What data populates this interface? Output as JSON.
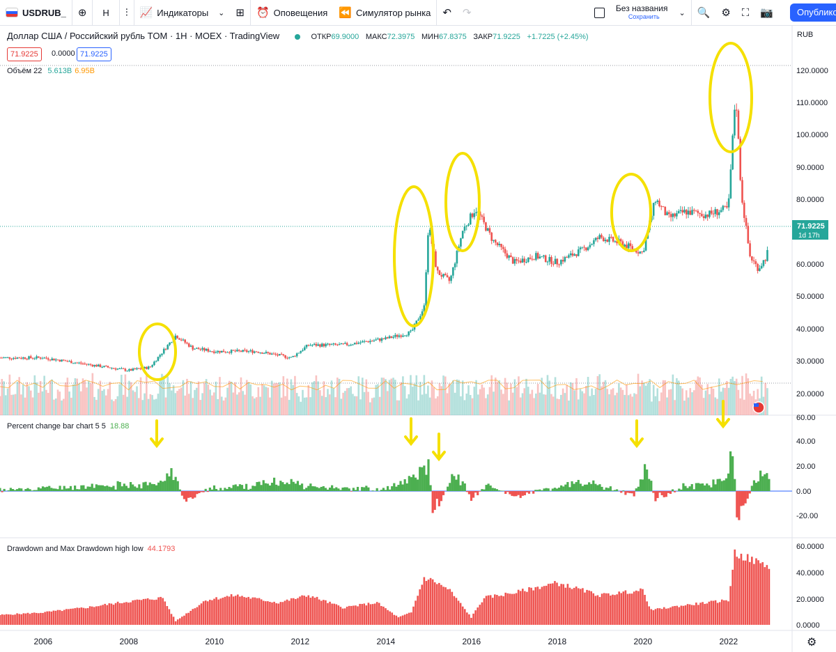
{
  "toolbar": {
    "symbol": "USDRUB_",
    "interval": "H",
    "indicators": "Индикаторы",
    "alerts": "Оповещения",
    "replay": "Симулятор рынка",
    "layout_name": "Без названия",
    "layout_status": "Сохранить",
    "publish": "Опубликов"
  },
  "header": {
    "title": "Доллар США / Российский рубль TOM · 1H · MOEX · TradingView",
    "open_label": "ОТКР",
    "open": "69.9000",
    "high_label": "МАКС",
    "high": "72.3975",
    "low_label": "МИН",
    "low": "67.8375",
    "close_label": "ЗАКР",
    "close": "71.9225",
    "change": "+1.7225 (+2.45%)",
    "bid": "71.9225",
    "spread": "0.0000",
    "ask": "71.9225",
    "currency": "RUB"
  },
  "volume_legend": {
    "label": "Объём 22",
    "value": "5.613B",
    "ma": "6.95B"
  },
  "indicator1": {
    "label": "Percent change bar chart 5 5",
    "value": "18.88"
  },
  "indicator2": {
    "label": "Drawdown and Max Drawdown high low",
    "value": "44.1793"
  },
  "price_label": {
    "price": "71.9225",
    "countdown": "1d 17h"
  },
  "colors": {
    "up": "#26a69a",
    "down": "#ef5350",
    "green": "#4caf50",
    "highlight": "#f5e000",
    "accent": "#2962ff"
  },
  "chart_data": [
    {
      "type": "line",
      "name": "USD/RUB price",
      "x": [
        2005.0,
        2006.0,
        2007.0,
        2008.0,
        2008.5,
        2009.1,
        2009.5,
        2010.0,
        2011.0,
        2011.8,
        2012.2,
        2013.0,
        2014.0,
        2014.6,
        2014.9,
        2015.0,
        2015.2,
        2015.5,
        2015.8,
        2016.1,
        2016.5,
        2017.0,
        2017.5,
        2018.0,
        2018.6,
        2019.0,
        2019.5,
        2020.0,
        2020.3,
        2020.6,
        2021.0,
        2021.5,
        2022.0,
        2022.17,
        2022.3,
        2022.5,
        2022.7,
        2022.9,
        2023.0
      ],
      "values": [
        28,
        28,
        26,
        24,
        25,
        35,
        31,
        30,
        30,
        28,
        32,
        32,
        34,
        36,
        44,
        70,
        55,
        52,
        68,
        75,
        65,
        58,
        60,
        58,
        62,
        66,
        64,
        61,
        78,
        72,
        74,
        73,
        75,
        112,
        80,
        60,
        56,
        60,
        72
      ],
      "ylim": [
        14,
        125
      ],
      "yticks": [
        "120.0000",
        "110.0000",
        "100.0000",
        "90.0000",
        "80.0000",
        "70.0000",
        "60.0000",
        "50.0000",
        "40.0000",
        "30.0000",
        "20.0000"
      ],
      "xticks": [
        "2006",
        "2008",
        "2010",
        "2012",
        "2014",
        "2016",
        "2018",
        "2020",
        "2022"
      ]
    },
    {
      "type": "bar",
      "name": "Percent change bar chart 5 5",
      "x": [
        2005.0,
        2008.8,
        2009.0,
        2009.3,
        2010.0,
        2011.8,
        2012.5,
        2014.0,
        2014.7,
        2014.9,
        2015.0,
        2015.1,
        2015.3,
        2015.6,
        2015.8,
        2016.0,
        2016.4,
        2017.0,
        2018.5,
        2019.0,
        2019.8,
        2020.1,
        2020.3,
        2021.0,
        2021.9,
        2022.1,
        2022.2,
        2022.3,
        2022.6,
        2022.9
      ],
      "values": [
        1,
        8,
        26,
        -8,
        3,
        10,
        4,
        2,
        14,
        22,
        26,
        -15,
        -10,
        18,
        12,
        -10,
        8,
        -6,
        9,
        6,
        -4,
        25,
        -8,
        6,
        10,
        50,
        -28,
        -20,
        10,
        19
      ],
      "ylim": [
        -30,
        60
      ],
      "yticks": [
        "60.00",
        "40.00",
        "20.00",
        "0.00",
        "-20.00"
      ]
    },
    {
      "type": "area",
      "name": "Drawdown and Max Drawdown high low",
      "x": [
        2005.0,
        2006.0,
        2007.0,
        2008.0,
        2008.8,
        2009.1,
        2009.8,
        2010.5,
        2011.5,
        2012.2,
        2013.0,
        2013.8,
        2014.3,
        2014.6,
        2014.9,
        2015.1,
        2015.5,
        2016.0,
        2016.3,
        2017.0,
        2018.0,
        2019.0,
        2020.0,
        2020.2,
        2021.0,
        2022.0,
        2022.15,
        2022.3,
        2022.9
      ],
      "values": [
        8,
        10,
        14,
        19,
        22,
        3,
        20,
        24,
        18,
        24,
        14,
        18,
        6,
        10,
        38,
        36,
        28,
        6,
        22,
        26,
        34,
        24,
        28,
        12,
        16,
        20,
        58,
        56,
        48
      ],
      "ylim": [
        0,
        62
      ],
      "yticks": [
        "60.0000",
        "40.0000",
        "20.0000",
        "0.0000"
      ]
    }
  ]
}
